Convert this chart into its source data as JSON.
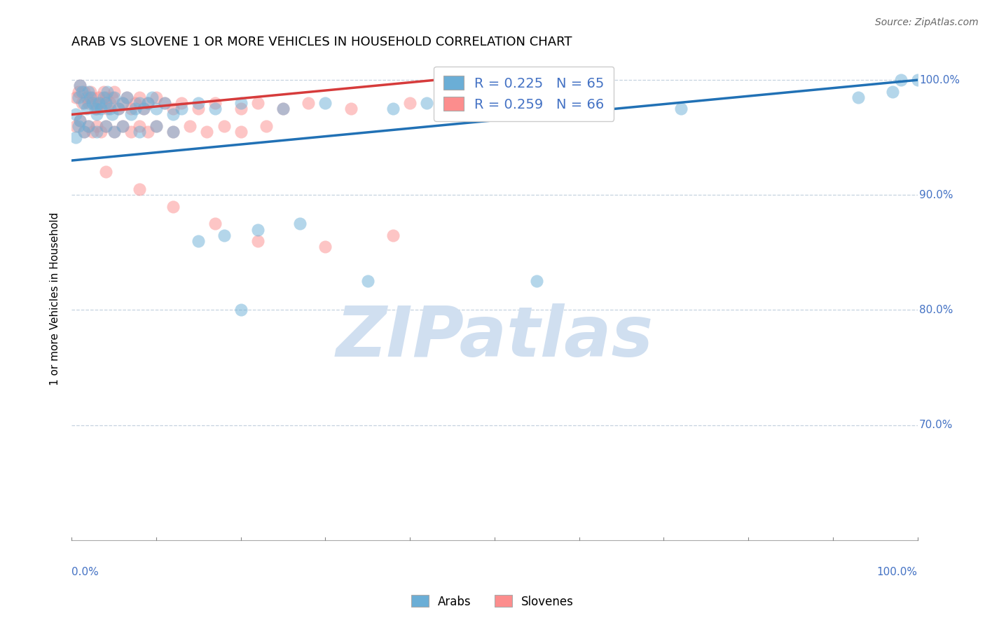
{
  "title": "ARAB VS SLOVENE 1 OR MORE VEHICLES IN HOUSEHOLD CORRELATION CHART",
  "source": "Source: ZipAtlas.com",
  "ylabel": "1 or more Vehicles in Household",
  "xlim": [
    0.0,
    1.0
  ],
  "ylim": [
    0.6,
    1.02
  ],
  "yticks": [
    0.7,
    0.8,
    0.9,
    1.0
  ],
  "legend_R_arab": "R = 0.225",
  "legend_N_arab": "N = 65",
  "legend_R_slovene": "R = 0.259",
  "legend_N_slovene": "N = 66",
  "arab_color": "#6baed6",
  "slovene_color": "#fc8d8d",
  "trendline_arab_color": "#2171b5",
  "trendline_slovene_color": "#d63b3b",
  "background_color": "#ffffff",
  "watermark": "ZIPatlas",
  "watermark_color": "#d0dff0",
  "arab_scatter_x": [
    0.005,
    0.008,
    0.01,
    0.012,
    0.015,
    0.018,
    0.02,
    0.022,
    0.025,
    0.028,
    0.03,
    0.032,
    0.035,
    0.038,
    0.04,
    0.042,
    0.045,
    0.048,
    0.05,
    0.055,
    0.06,
    0.065,
    0.07,
    0.075,
    0.08,
    0.085,
    0.09,
    0.095,
    0.1,
    0.11,
    0.12,
    0.13,
    0.15,
    0.17,
    0.2,
    0.25,
    0.3,
    0.38,
    0.42,
    0.5,
    0.6,
    0.72,
    0.93,
    0.97,
    1.0,
    0.005,
    0.008,
    0.01,
    0.015,
    0.02,
    0.03,
    0.04,
    0.05,
    0.06,
    0.08,
    0.1,
    0.12,
    0.15,
    0.18,
    0.22,
    0.27,
    0.2,
    0.35,
    0.55,
    0.98
  ],
  "arab_scatter_y": [
    0.97,
    0.985,
    0.995,
    0.99,
    0.98,
    0.975,
    0.99,
    0.985,
    0.98,
    0.975,
    0.97,
    0.98,
    0.975,
    0.985,
    0.98,
    0.99,
    0.975,
    0.97,
    0.985,
    0.975,
    0.98,
    0.985,
    0.97,
    0.975,
    0.98,
    0.975,
    0.98,
    0.985,
    0.975,
    0.98,
    0.97,
    0.975,
    0.98,
    0.975,
    0.98,
    0.975,
    0.98,
    0.975,
    0.98,
    0.975,
    0.98,
    0.975,
    0.985,
    0.99,
    1.0,
    0.95,
    0.96,
    0.965,
    0.955,
    0.96,
    0.955,
    0.96,
    0.955,
    0.96,
    0.955,
    0.96,
    0.955,
    0.86,
    0.865,
    0.87,
    0.875,
    0.8,
    0.825,
    0.825,
    1.0
  ],
  "slovene_scatter_x": [
    0.005,
    0.008,
    0.01,
    0.012,
    0.015,
    0.018,
    0.02,
    0.022,
    0.025,
    0.028,
    0.03,
    0.032,
    0.035,
    0.038,
    0.04,
    0.042,
    0.045,
    0.048,
    0.05,
    0.055,
    0.06,
    0.065,
    0.07,
    0.075,
    0.08,
    0.085,
    0.09,
    0.1,
    0.11,
    0.12,
    0.13,
    0.15,
    0.17,
    0.2,
    0.22,
    0.25,
    0.28,
    0.33,
    0.4,
    0.005,
    0.01,
    0.015,
    0.02,
    0.025,
    0.03,
    0.035,
    0.04,
    0.05,
    0.06,
    0.07,
    0.08,
    0.09,
    0.1,
    0.12,
    0.14,
    0.16,
    0.18,
    0.2,
    0.23,
    0.04,
    0.08,
    0.12,
    0.17,
    0.22,
    0.3,
    0.38
  ],
  "slovene_scatter_y": [
    0.985,
    0.99,
    0.995,
    0.98,
    0.99,
    0.985,
    0.98,
    0.99,
    0.985,
    0.98,
    0.975,
    0.985,
    0.98,
    0.99,
    0.985,
    0.975,
    0.98,
    0.985,
    0.99,
    0.975,
    0.98,
    0.985,
    0.975,
    0.98,
    0.985,
    0.975,
    0.98,
    0.985,
    0.98,
    0.975,
    0.98,
    0.975,
    0.98,
    0.975,
    0.98,
    0.975,
    0.98,
    0.975,
    0.98,
    0.96,
    0.965,
    0.955,
    0.96,
    0.955,
    0.96,
    0.955,
    0.96,
    0.955,
    0.96,
    0.955,
    0.96,
    0.955,
    0.96,
    0.955,
    0.96,
    0.955,
    0.96,
    0.955,
    0.96,
    0.92,
    0.905,
    0.89,
    0.875,
    0.86,
    0.855,
    0.865
  ],
  "arab_trend_x": [
    0.0,
    1.0
  ],
  "arab_trend_y": [
    0.93,
    1.0
  ],
  "slovene_trend_x": [
    0.0,
    0.43
  ],
  "slovene_trend_y": [
    0.97,
    1.0
  ]
}
